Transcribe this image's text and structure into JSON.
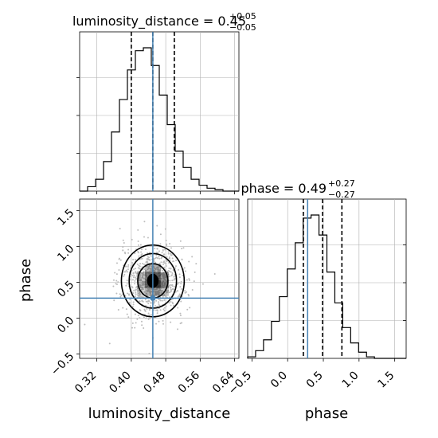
{
  "chart_data": {
    "type": "corner",
    "parameters": [
      "luminosity_distance",
      "phase"
    ],
    "panel_titles": {
      "luminosity_distance": {
        "prefix": "luminosity_distance = 0.45",
        "plus": "+0.05",
        "minus": "−0.05"
      },
      "phase": {
        "prefix": "phase = 0.49",
        "plus": "+0.27",
        "minus": "−0.27"
      }
    },
    "xlabels": {
      "left": "luminosity_distance",
      "right": "phase"
    },
    "ylabel": "phase",
    "truth": {
      "luminosity_distance": 0.45,
      "phase": 0.28
    },
    "quantiles": {
      "luminosity_distance": [
        0.4,
        0.45,
        0.5
      ],
      "phase": [
        0.22,
        0.49,
        0.76
      ]
    },
    "axes": {
      "luminosity_distance": {
        "range": [
          0.28,
          0.65
        ],
        "ticks": [
          0.32,
          0.4,
          0.48,
          0.56,
          0.64
        ],
        "tick_labels": [
          "0.32",
          "0.40",
          "0.48",
          "0.56",
          "0.64"
        ]
      },
      "phase": {
        "range": [
          -0.56,
          1.66
        ],
        "ticks": [
          -0.5,
          0.0,
          0.5,
          1.0,
          1.5
        ],
        "tick_labels": [
          "−0.5",
          "0.0",
          "0.5",
          "1.0",
          "1.5"
        ]
      },
      "phase_y_tick_labels": [
        "−0.5",
        "0.0",
        "0.5",
        "1.0",
        "1.5"
      ]
    },
    "hist_luminosity_distance": {
      "bin_start": 0.28,
      "bin_width": 0.0185,
      "counts": [
        0,
        3,
        8,
        20,
        40,
        62,
        82,
        95,
        97,
        85,
        65,
        45,
        27,
        16,
        8,
        4,
        2,
        1,
        0,
        0
      ]
    },
    "hist_phase": {
      "bin_start": -0.56,
      "bin_width": 0.111,
      "counts": [
        1,
        5,
        12,
        24,
        40,
        58,
        75,
        91,
        93,
        80,
        56,
        36,
        20,
        10,
        4,
        1,
        0,
        0,
        0,
        0
      ]
    },
    "contours_2d": {
      "center": [
        0.45,
        0.52
      ],
      "levels": [
        {
          "rx": 0.012,
          "ry": 0.09
        },
        {
          "rx": 0.035,
          "ry": 0.24
        },
        {
          "rx": 0.055,
          "ry": 0.38
        },
        {
          "rx": 0.073,
          "ry": 0.5
        }
      ]
    },
    "colors": {
      "truth": "#4682b4",
      "hist": "#000000",
      "grid": "#b0b0b0",
      "points": "#bdbdbd"
    },
    "grid": true
  }
}
